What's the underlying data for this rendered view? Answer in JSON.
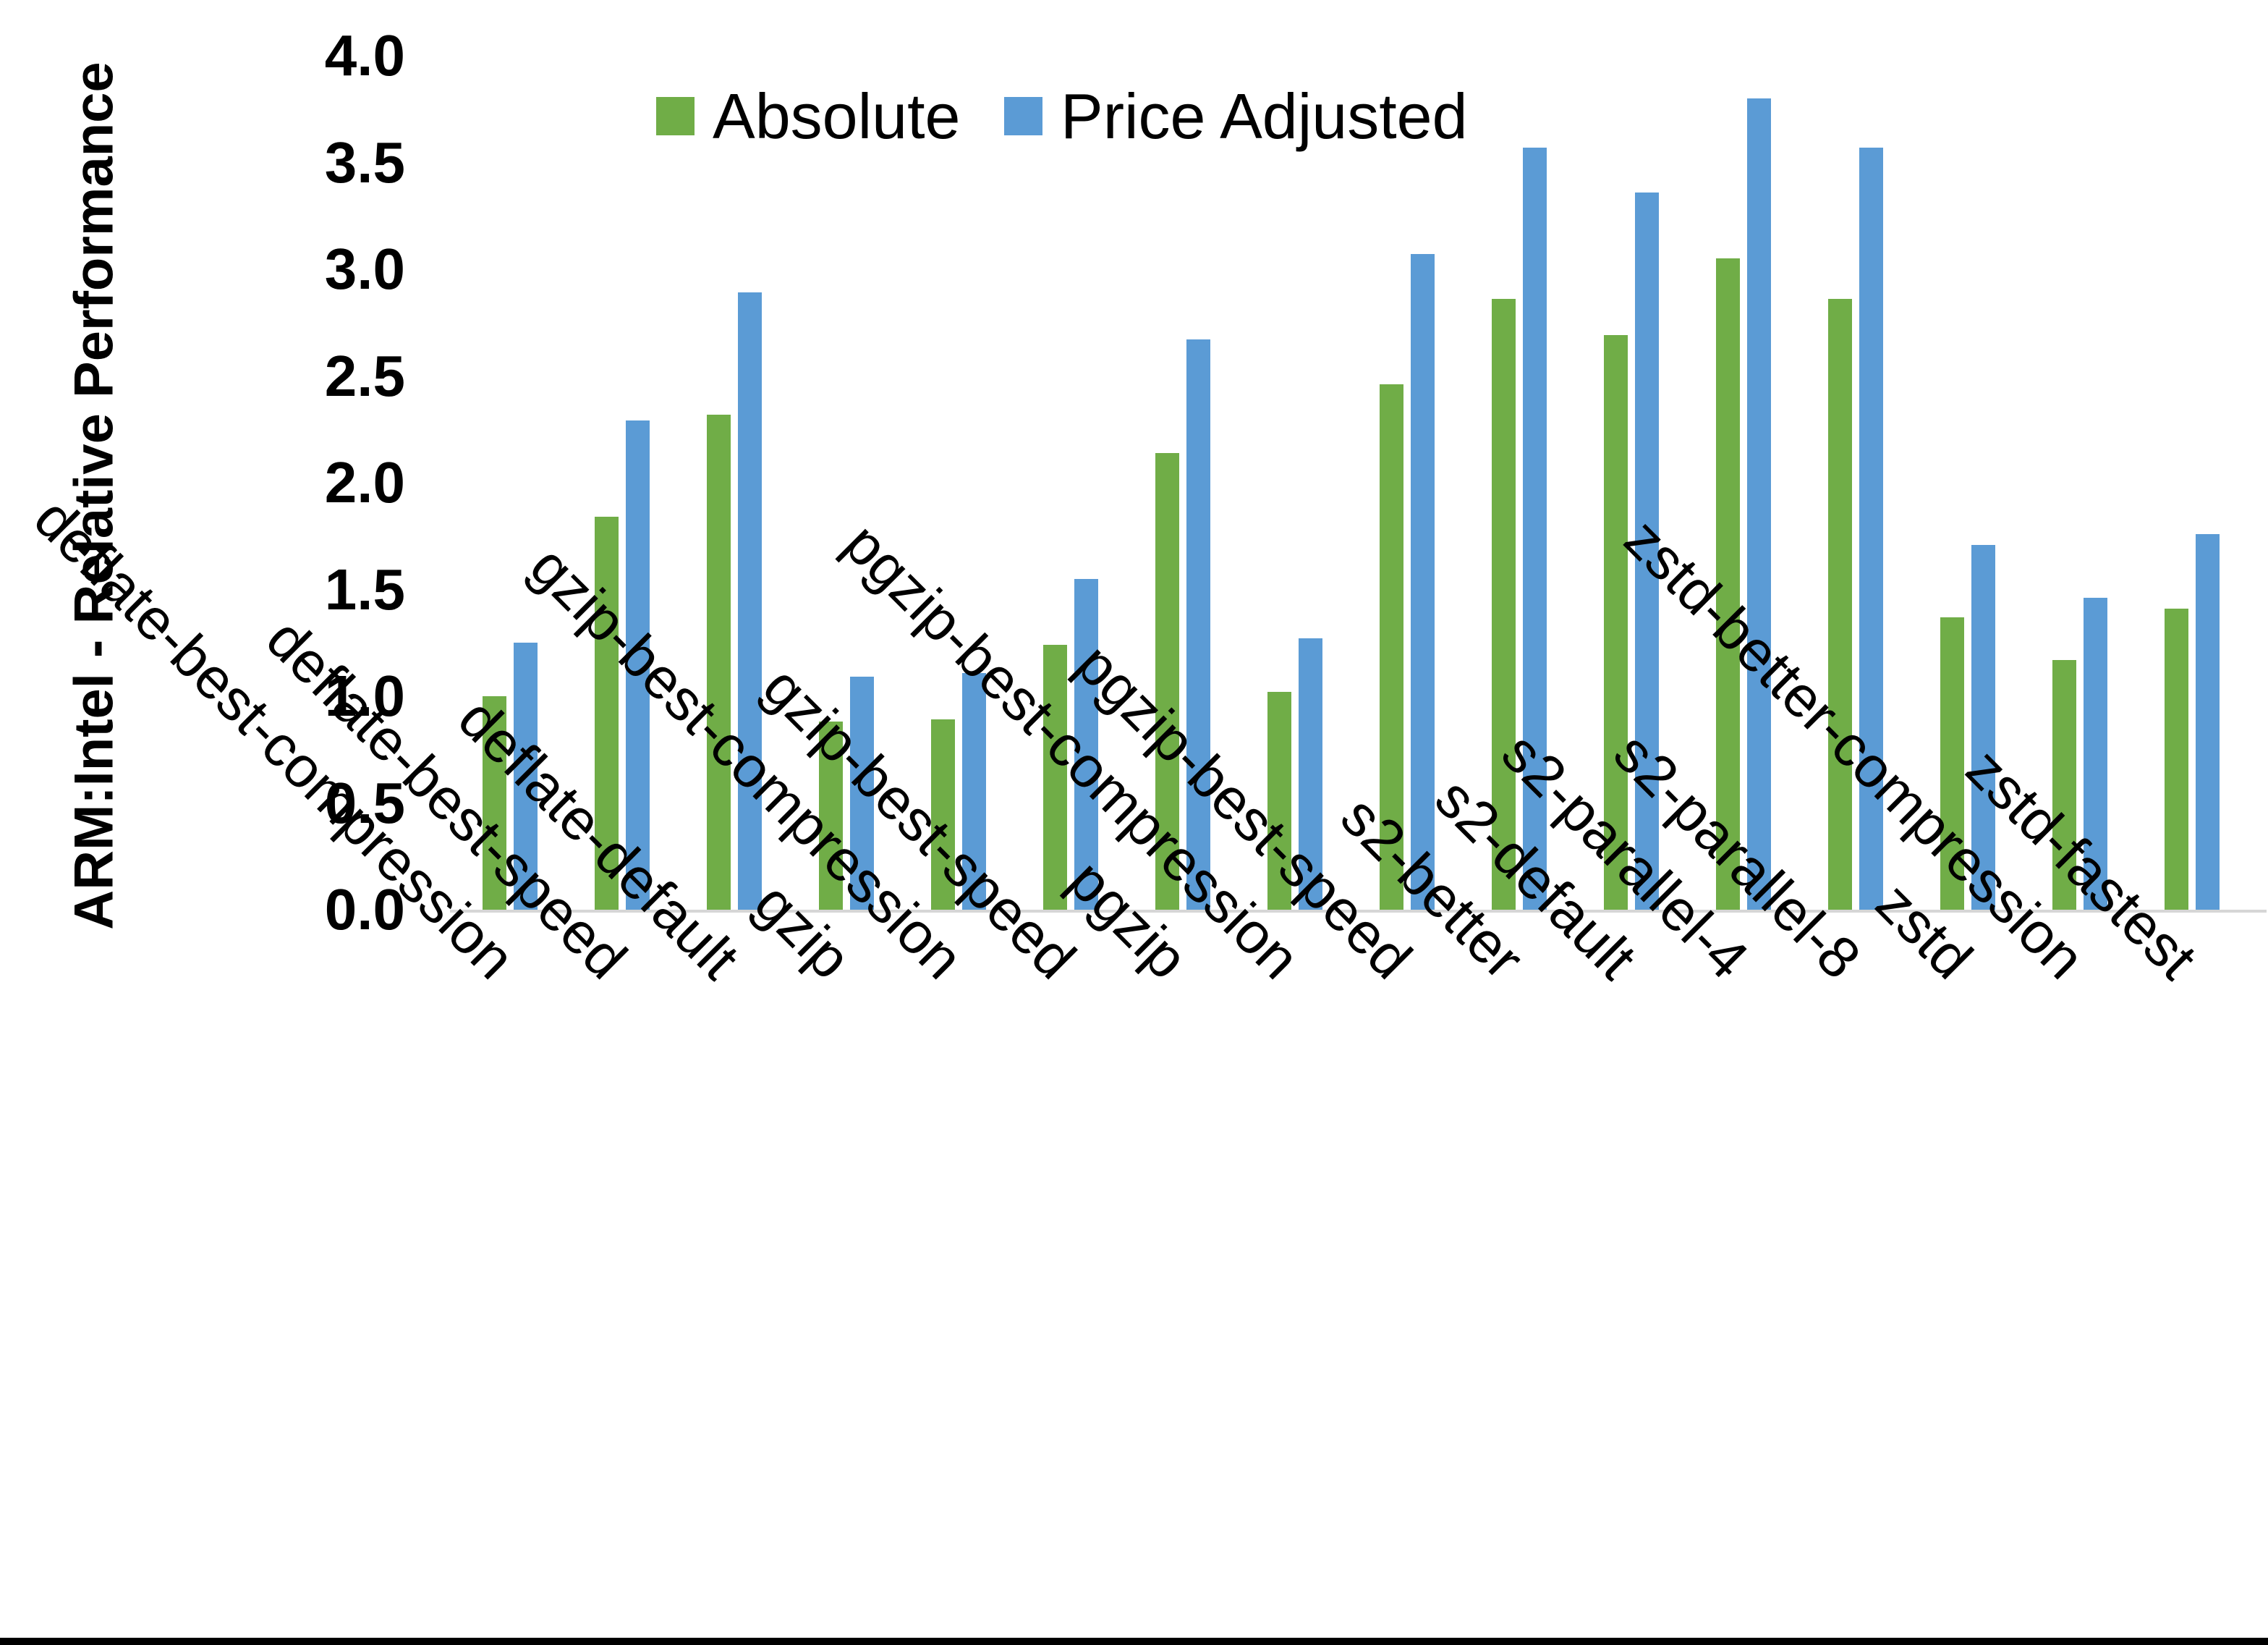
{
  "chart_data": {
    "type": "bar",
    "title": "",
    "xlabel": "",
    "ylabel": "ARM:Intel - Relative Performance",
    "ylim": [
      0.0,
      4.0
    ],
    "ytick_step": 0.5,
    "ytick_labels": [
      "0.0",
      "0.5",
      "1.0",
      "1.5",
      "2.0",
      "2.5",
      "3.0",
      "3.5",
      "4.0"
    ],
    "grid": false,
    "legend_position": "top-center",
    "categories": [
      "deflate-best-compression",
      "deflate-best-speed",
      "deflate-default",
      "gzip",
      "gzip-best-compression",
      "gzip-best-speed",
      "pgzip",
      "pgzip-best-compression",
      "pgzip-best-speed",
      "s2-better",
      "s2-default",
      "s2-parallel-4",
      "s2-parallel-8",
      "zstd",
      "zstd-better-compression",
      "zstd-fastest"
    ],
    "series": [
      {
        "name": "Absolute",
        "color": "#70AD47",
        "values": [
          1.0,
          1.84,
          2.32,
          0.88,
          0.89,
          1.24,
          2.14,
          1.02,
          2.46,
          2.86,
          2.69,
          3.05,
          2.86,
          1.37,
          1.17,
          1.41
        ]
      },
      {
        "name": "Price Adjusted",
        "color": "#5B9BD5",
        "values": [
          1.25,
          2.29,
          2.89,
          1.09,
          1.11,
          1.55,
          2.67,
          1.27,
          3.07,
          3.57,
          3.36,
          3.8,
          3.57,
          1.71,
          1.46,
          1.76
        ]
      }
    ]
  },
  "colors": {
    "background": "#FFFFFF",
    "axis_line": "#D6D6D6",
    "text": "#000000",
    "bottom_border": "#000000"
  }
}
